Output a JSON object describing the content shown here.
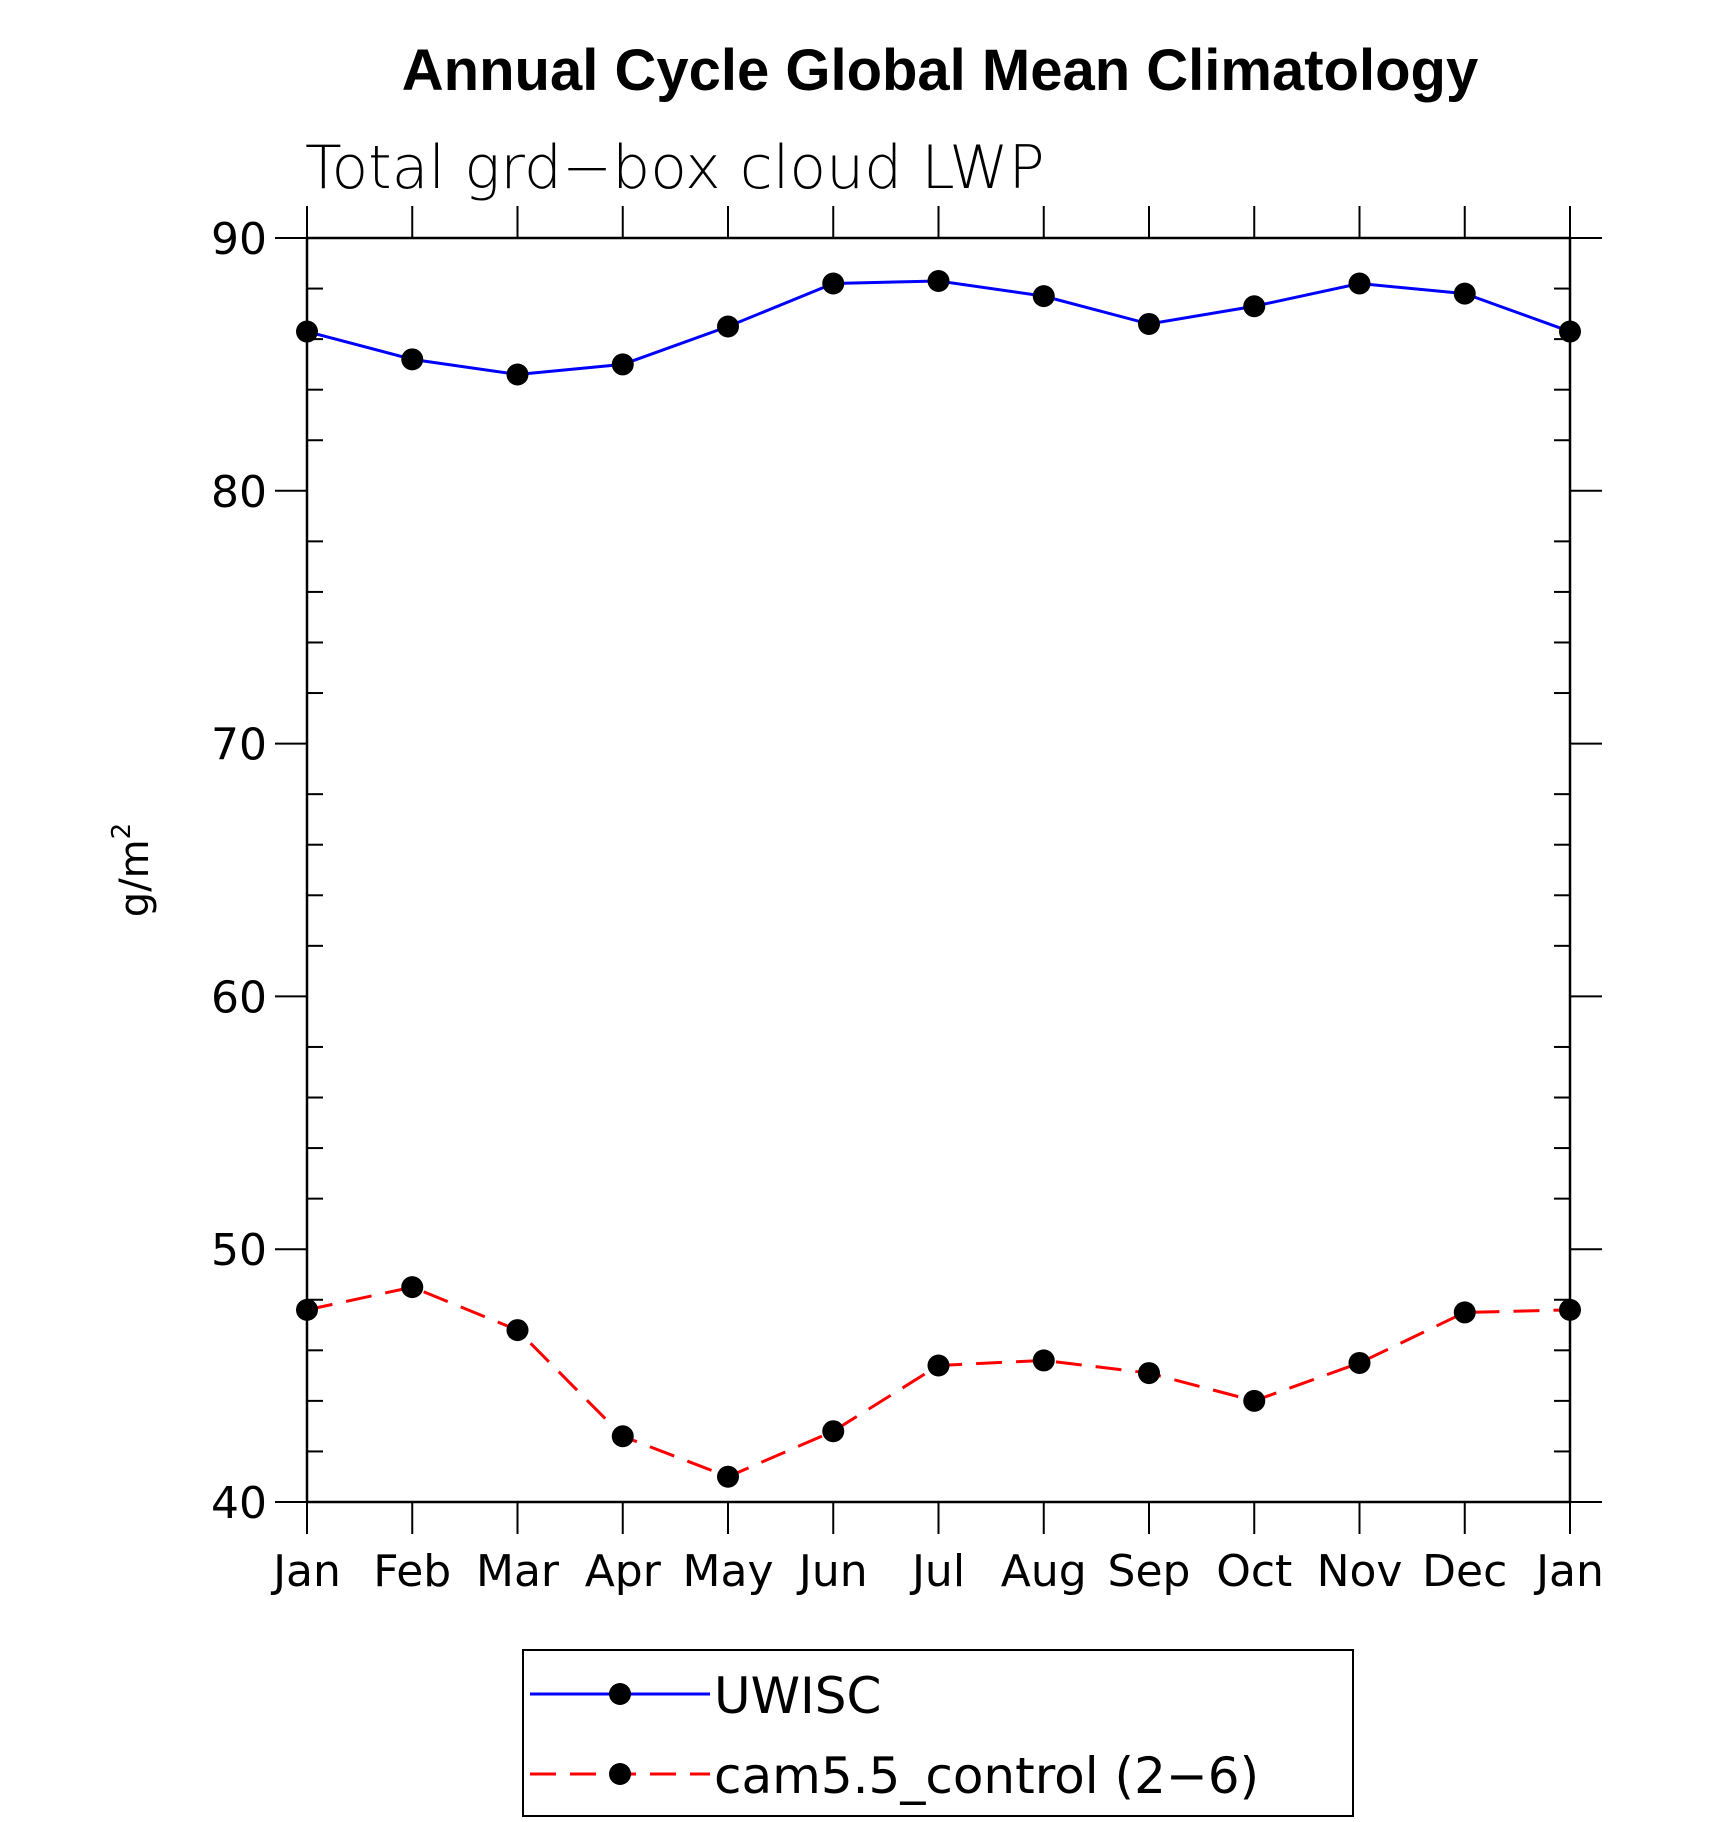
{
  "chart_data": {
    "type": "line",
    "title": "Annual Cycle Global Mean Climatology",
    "subtitle": "Total grd−box cloud LWP",
    "ylabel": "g/m",
    "ylabel_superscript": "2",
    "xlabel": "",
    "categories": [
      "Jan",
      "Feb",
      "Mar",
      "Apr",
      "May",
      "Jun",
      "Jul",
      "Aug",
      "Sep",
      "Oct",
      "Nov",
      "Dec",
      "Jan"
    ],
    "ylim": [
      40,
      90
    ],
    "yticks": [
      40,
      50,
      60,
      70,
      80,
      90
    ],
    "yticks_minor_step": 2,
    "grid": false,
    "legend_position": "bottom-center",
    "series": [
      {
        "name": "UWISC",
        "color": "#0000ff",
        "line_style": "solid",
        "marker": "filled-circle",
        "values": [
          86.3,
          85.2,
          84.6,
          85.0,
          86.5,
          88.2,
          88.3,
          87.7,
          86.6,
          87.3,
          88.2,
          87.8,
          86.3
        ]
      },
      {
        "name": "cam5.5_control (2−6)",
        "color": "#ff0000",
        "line_style": "dashed",
        "marker": "filled-circle",
        "values": [
          47.6,
          48.5,
          46.8,
          42.6,
          41.0,
          42.8,
          45.4,
          45.6,
          45.1,
          44.0,
          45.5,
          47.5,
          47.6
        ]
      }
    ]
  }
}
